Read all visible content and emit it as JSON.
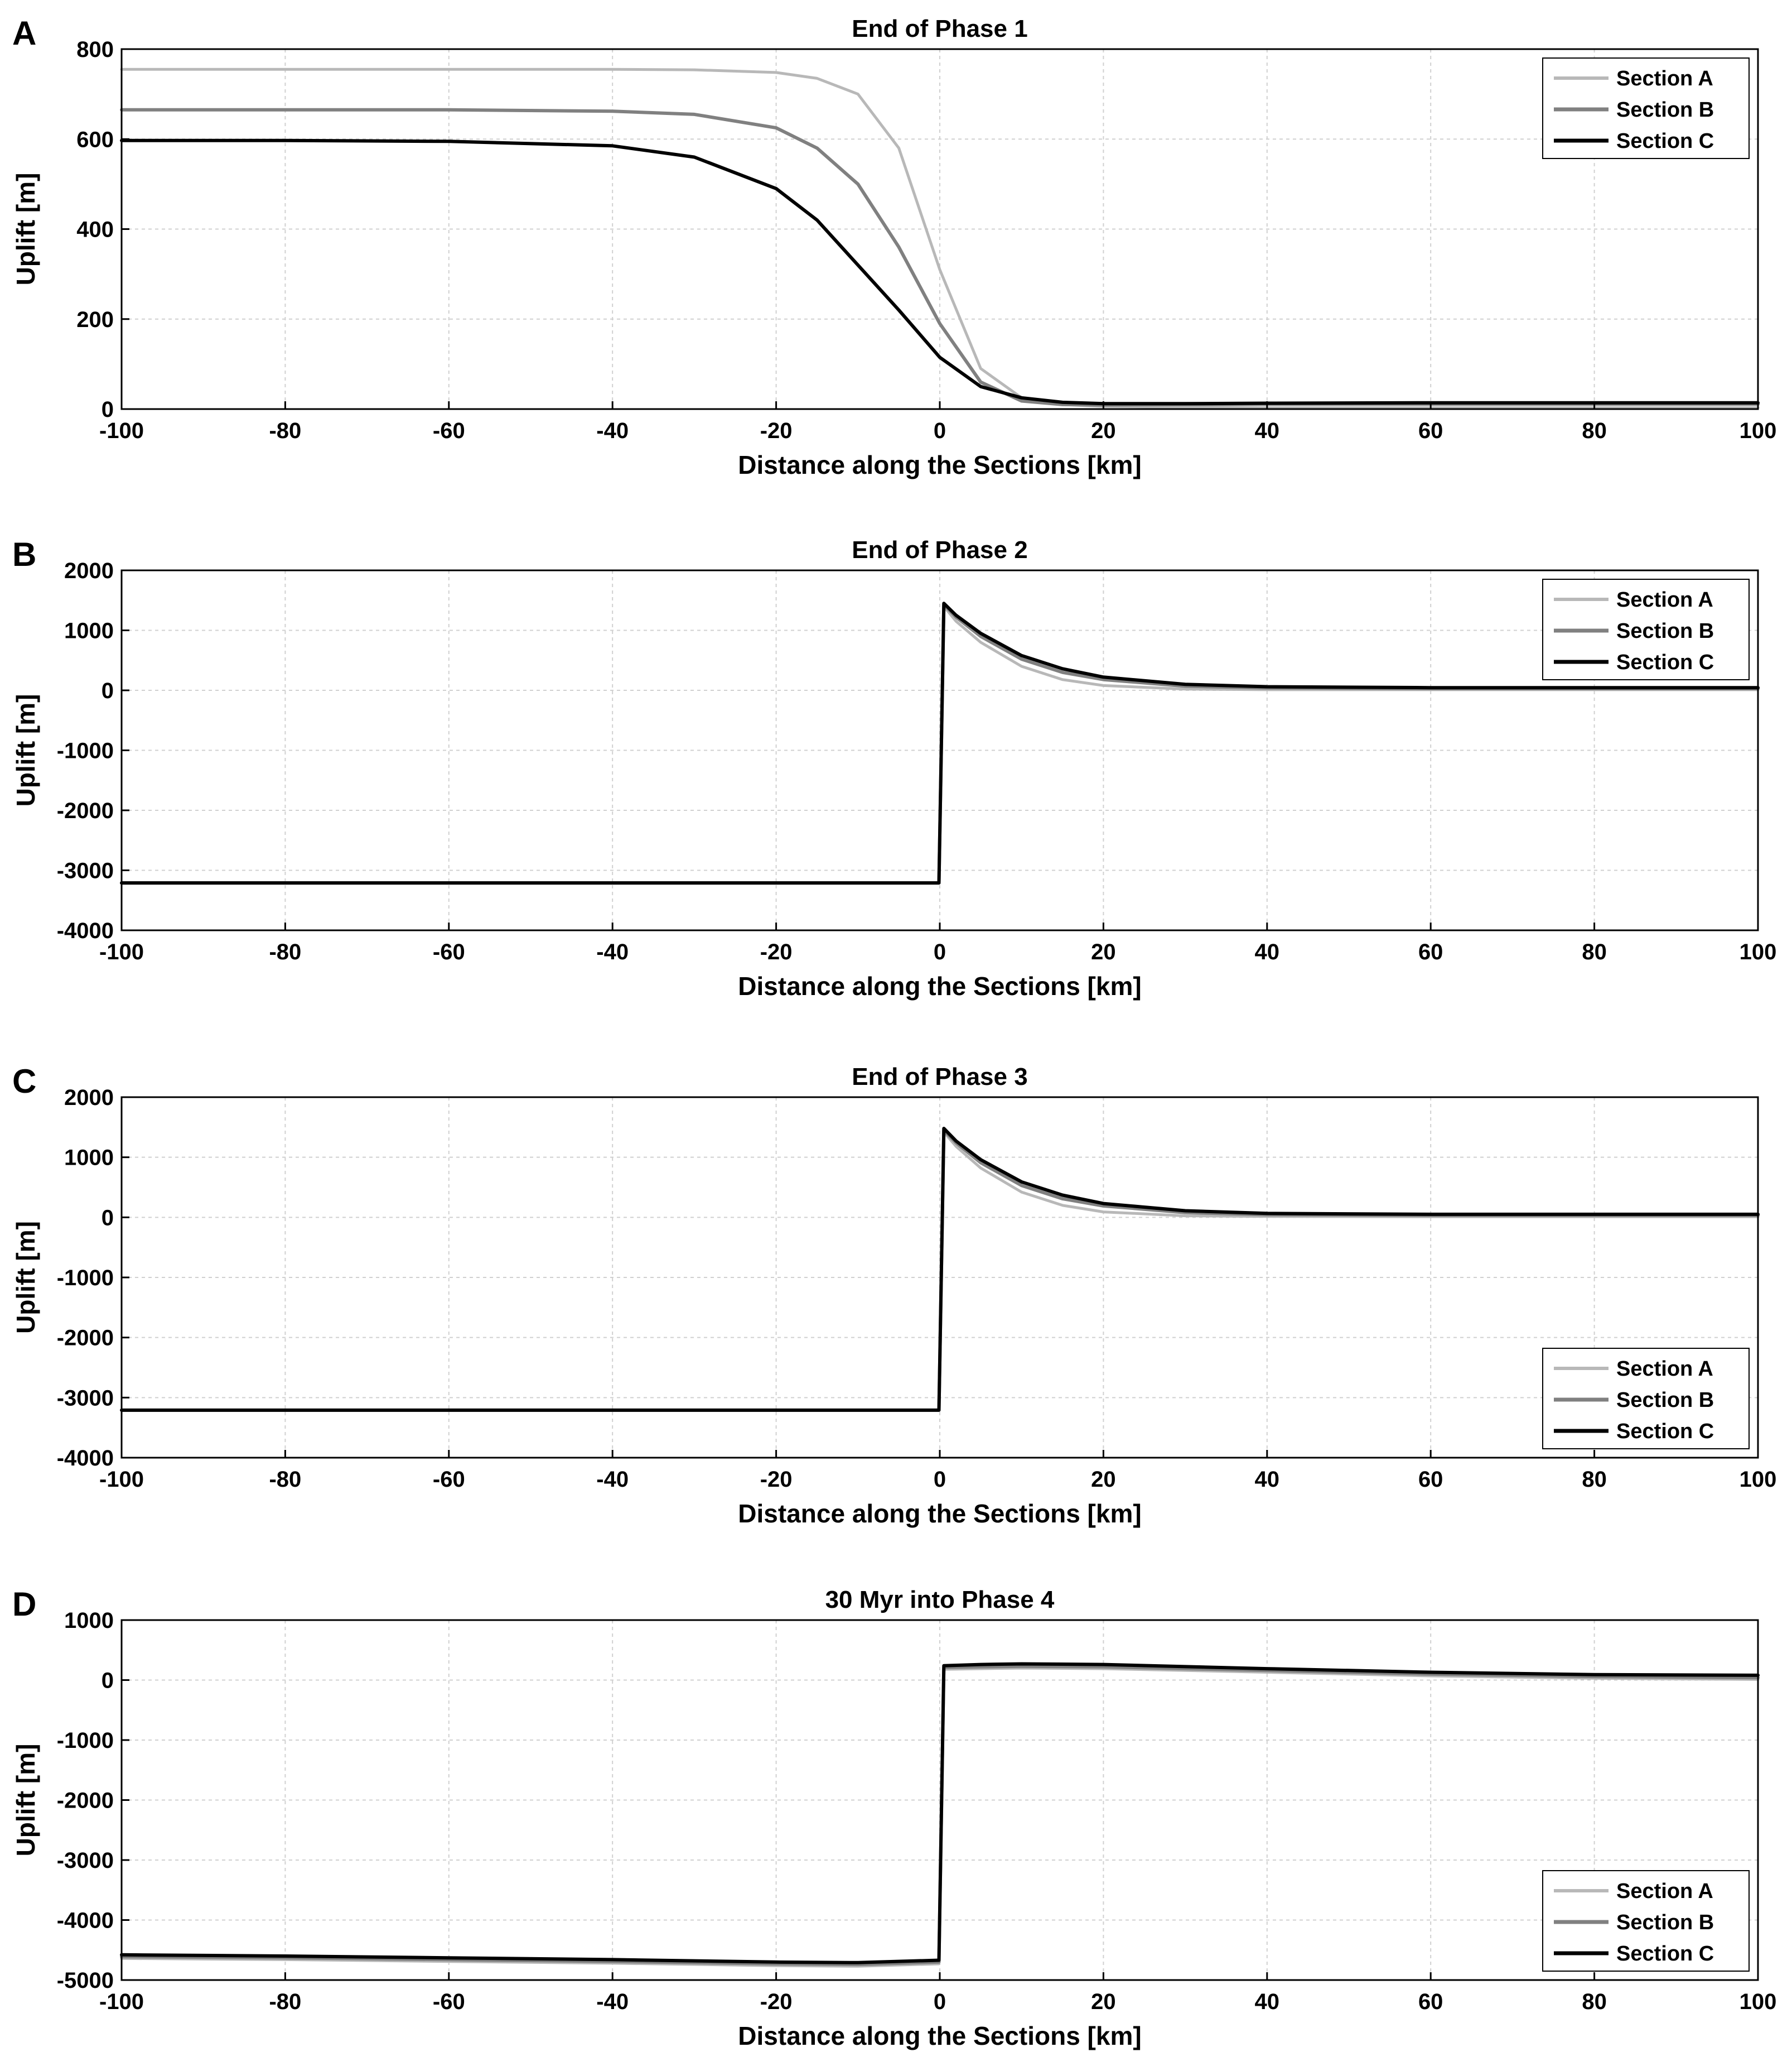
{
  "chart_data": [
    {
      "panel": "A",
      "type": "line",
      "title": "End of Phase 1",
      "xlabel": "Distance along the Sections [km]",
      "ylabel": "Uplift [m]",
      "xlim": [
        -100,
        100
      ],
      "ylim": [
        0,
        800
      ],
      "xticks": [
        -100,
        -80,
        -60,
        -40,
        -20,
        0,
        20,
        40,
        60,
        80,
        100
      ],
      "yticks": [
        0,
        200,
        400,
        600,
        800
      ],
      "grid": true,
      "legend_position": "top-right",
      "x": [
        -100,
        -80,
        -60,
        -40,
        -30,
        -20,
        -15,
        -10,
        -5,
        0,
        5,
        10,
        15,
        20,
        30,
        40,
        60,
        80,
        100
      ],
      "series": [
        {
          "name": "Section A",
          "color": "#b8b8b8",
          "values": [
            755,
            755,
            755,
            755,
            754,
            748,
            735,
            700,
            580,
            310,
            90,
            25,
            10,
            6,
            4,
            3,
            3,
            3,
            3
          ]
        },
        {
          "name": "Section B",
          "color": "#808080",
          "values": [
            665,
            665,
            665,
            662,
            655,
            625,
            580,
            500,
            360,
            190,
            60,
            18,
            10,
            9,
            10,
            11,
            11,
            11,
            11
          ]
        },
        {
          "name": "Section C",
          "color": "#000000",
          "values": [
            597,
            597,
            595,
            585,
            560,
            490,
            420,
            320,
            220,
            115,
            50,
            25,
            15,
            12,
            12,
            13,
            14,
            14,
            14
          ]
        }
      ]
    },
    {
      "panel": "B",
      "type": "line",
      "title": "End of Phase 2",
      "xlabel": "Distance along the Sections [km]",
      "ylabel": "Uplift [m]",
      "xlim": [
        -100,
        100
      ],
      "ylim": [
        -4000,
        2000
      ],
      "xticks": [
        -100,
        -80,
        -60,
        -40,
        -20,
        0,
        20,
        40,
        60,
        80,
        100
      ],
      "yticks": [
        -4000,
        -3000,
        -2000,
        -1000,
        0,
        1000,
        2000
      ],
      "grid": true,
      "legend_position": "top-right",
      "x": [
        -100,
        -80,
        -60,
        -40,
        -20,
        -0.1,
        0.5,
        2,
        5,
        10,
        15,
        20,
        30,
        40,
        60,
        80,
        100
      ],
      "series": [
        {
          "name": "Section A",
          "color": "#b8b8b8",
          "values": [
            -3210,
            -3210,
            -3210,
            -3210,
            -3210,
            -3210,
            1400,
            1150,
            800,
            400,
            180,
            80,
            20,
            10,
            10,
            10,
            10
          ]
        },
        {
          "name": "Section B",
          "color": "#808080",
          "values": [
            -3210,
            -3210,
            -3210,
            -3210,
            -3210,
            -3210,
            1430,
            1220,
            900,
            520,
            300,
            180,
            70,
            40,
            30,
            30,
            30
          ]
        },
        {
          "name": "Section C",
          "color": "#000000",
          "values": [
            -3210,
            -3210,
            -3210,
            -3210,
            -3210,
            -3210,
            1450,
            1250,
            950,
            580,
            360,
            220,
            100,
            60,
            45,
            45,
            45
          ]
        }
      ]
    },
    {
      "panel": "C",
      "type": "line",
      "title": "End of Phase 3",
      "xlabel": "Distance along the Sections [km]",
      "ylabel": "Uplift [m]",
      "xlim": [
        -100,
        100
      ],
      "ylim": [
        -4000,
        2000
      ],
      "xticks": [
        -100,
        -80,
        -60,
        -40,
        -20,
        0,
        20,
        40,
        60,
        80,
        100
      ],
      "yticks": [
        -4000,
        -3000,
        -2000,
        -1000,
        0,
        1000,
        2000
      ],
      "grid": true,
      "legend_position": "bottom-right",
      "x": [
        -100,
        -80,
        -60,
        -40,
        -20,
        -0.1,
        0.5,
        2,
        5,
        10,
        15,
        20,
        30,
        40,
        60,
        80,
        100
      ],
      "series": [
        {
          "name": "Section A",
          "color": "#b8b8b8",
          "values": [
            -3210,
            -3210,
            -3210,
            -3210,
            -3210,
            -3210,
            1420,
            1180,
            820,
            420,
            200,
            90,
            25,
            15,
            10,
            10,
            10
          ]
        },
        {
          "name": "Section B",
          "color": "#808080",
          "values": [
            -3210,
            -3210,
            -3210,
            -3210,
            -3210,
            -3210,
            1450,
            1240,
            910,
            530,
            310,
            190,
            80,
            45,
            35,
            35,
            35
          ]
        },
        {
          "name": "Section C",
          "color": "#000000",
          "values": [
            -3210,
            -3210,
            -3210,
            -3210,
            -3210,
            -3210,
            1480,
            1270,
            960,
            590,
            370,
            230,
            110,
            65,
            50,
            50,
            50
          ]
        }
      ]
    },
    {
      "panel": "D",
      "type": "line",
      "title": "30 Myr into Phase 4",
      "xlabel": "Distance along the Sections [km]",
      "ylabel": "Uplift [m]",
      "xlim": [
        -100,
        100
      ],
      "ylim": [
        -5000,
        1000
      ],
      "xticks": [
        -100,
        -80,
        -60,
        -40,
        -20,
        0,
        20,
        40,
        60,
        80,
        100
      ],
      "yticks": [
        -5000,
        -4000,
        -3000,
        -2000,
        -1000,
        0,
        1000
      ],
      "grid": true,
      "legend_position": "bottom-right",
      "x": [
        -100,
        -80,
        -60,
        -40,
        -20,
        -10,
        -0.1,
        0.5,
        5,
        10,
        20,
        40,
        60,
        80,
        100
      ],
      "series": [
        {
          "name": "Section A",
          "color": "#b8b8b8",
          "values": [
            -4640,
            -4660,
            -4690,
            -4720,
            -4760,
            -4770,
            -4730,
            180,
            190,
            200,
            190,
            130,
            70,
            30,
            10
          ]
        },
        {
          "name": "Section B",
          "color": "#808080",
          "values": [
            -4610,
            -4630,
            -4660,
            -4690,
            -4730,
            -4740,
            -4700,
            210,
            220,
            230,
            220,
            160,
            100,
            60,
            40
          ]
        },
        {
          "name": "Section C",
          "color": "#000000",
          "values": [
            -4580,
            -4600,
            -4630,
            -4660,
            -4700,
            -4710,
            -4670,
            240,
            260,
            270,
            260,
            190,
            130,
            90,
            80
          ]
        }
      ]
    }
  ]
}
